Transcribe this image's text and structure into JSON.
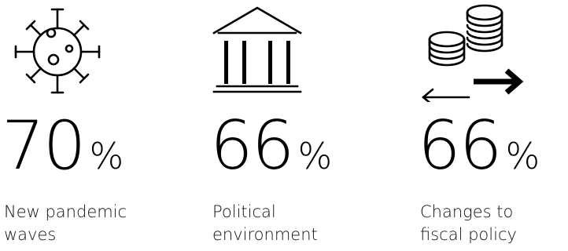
{
  "stats": [
    {
      "icon": "virus-icon",
      "value": "70",
      "unit": "%",
      "label_lines": [
        "New pandemic",
        "waves"
      ]
    },
    {
      "icon": "government-building-icon",
      "value": "66",
      "unit": "%",
      "label_lines": [
        "Political",
        "environment"
      ]
    },
    {
      "icon": "coins-exchange-icon",
      "value": "66",
      "unit": "%",
      "label_lines": [
        "Changes to",
        "fiscal policy"
      ]
    }
  ]
}
